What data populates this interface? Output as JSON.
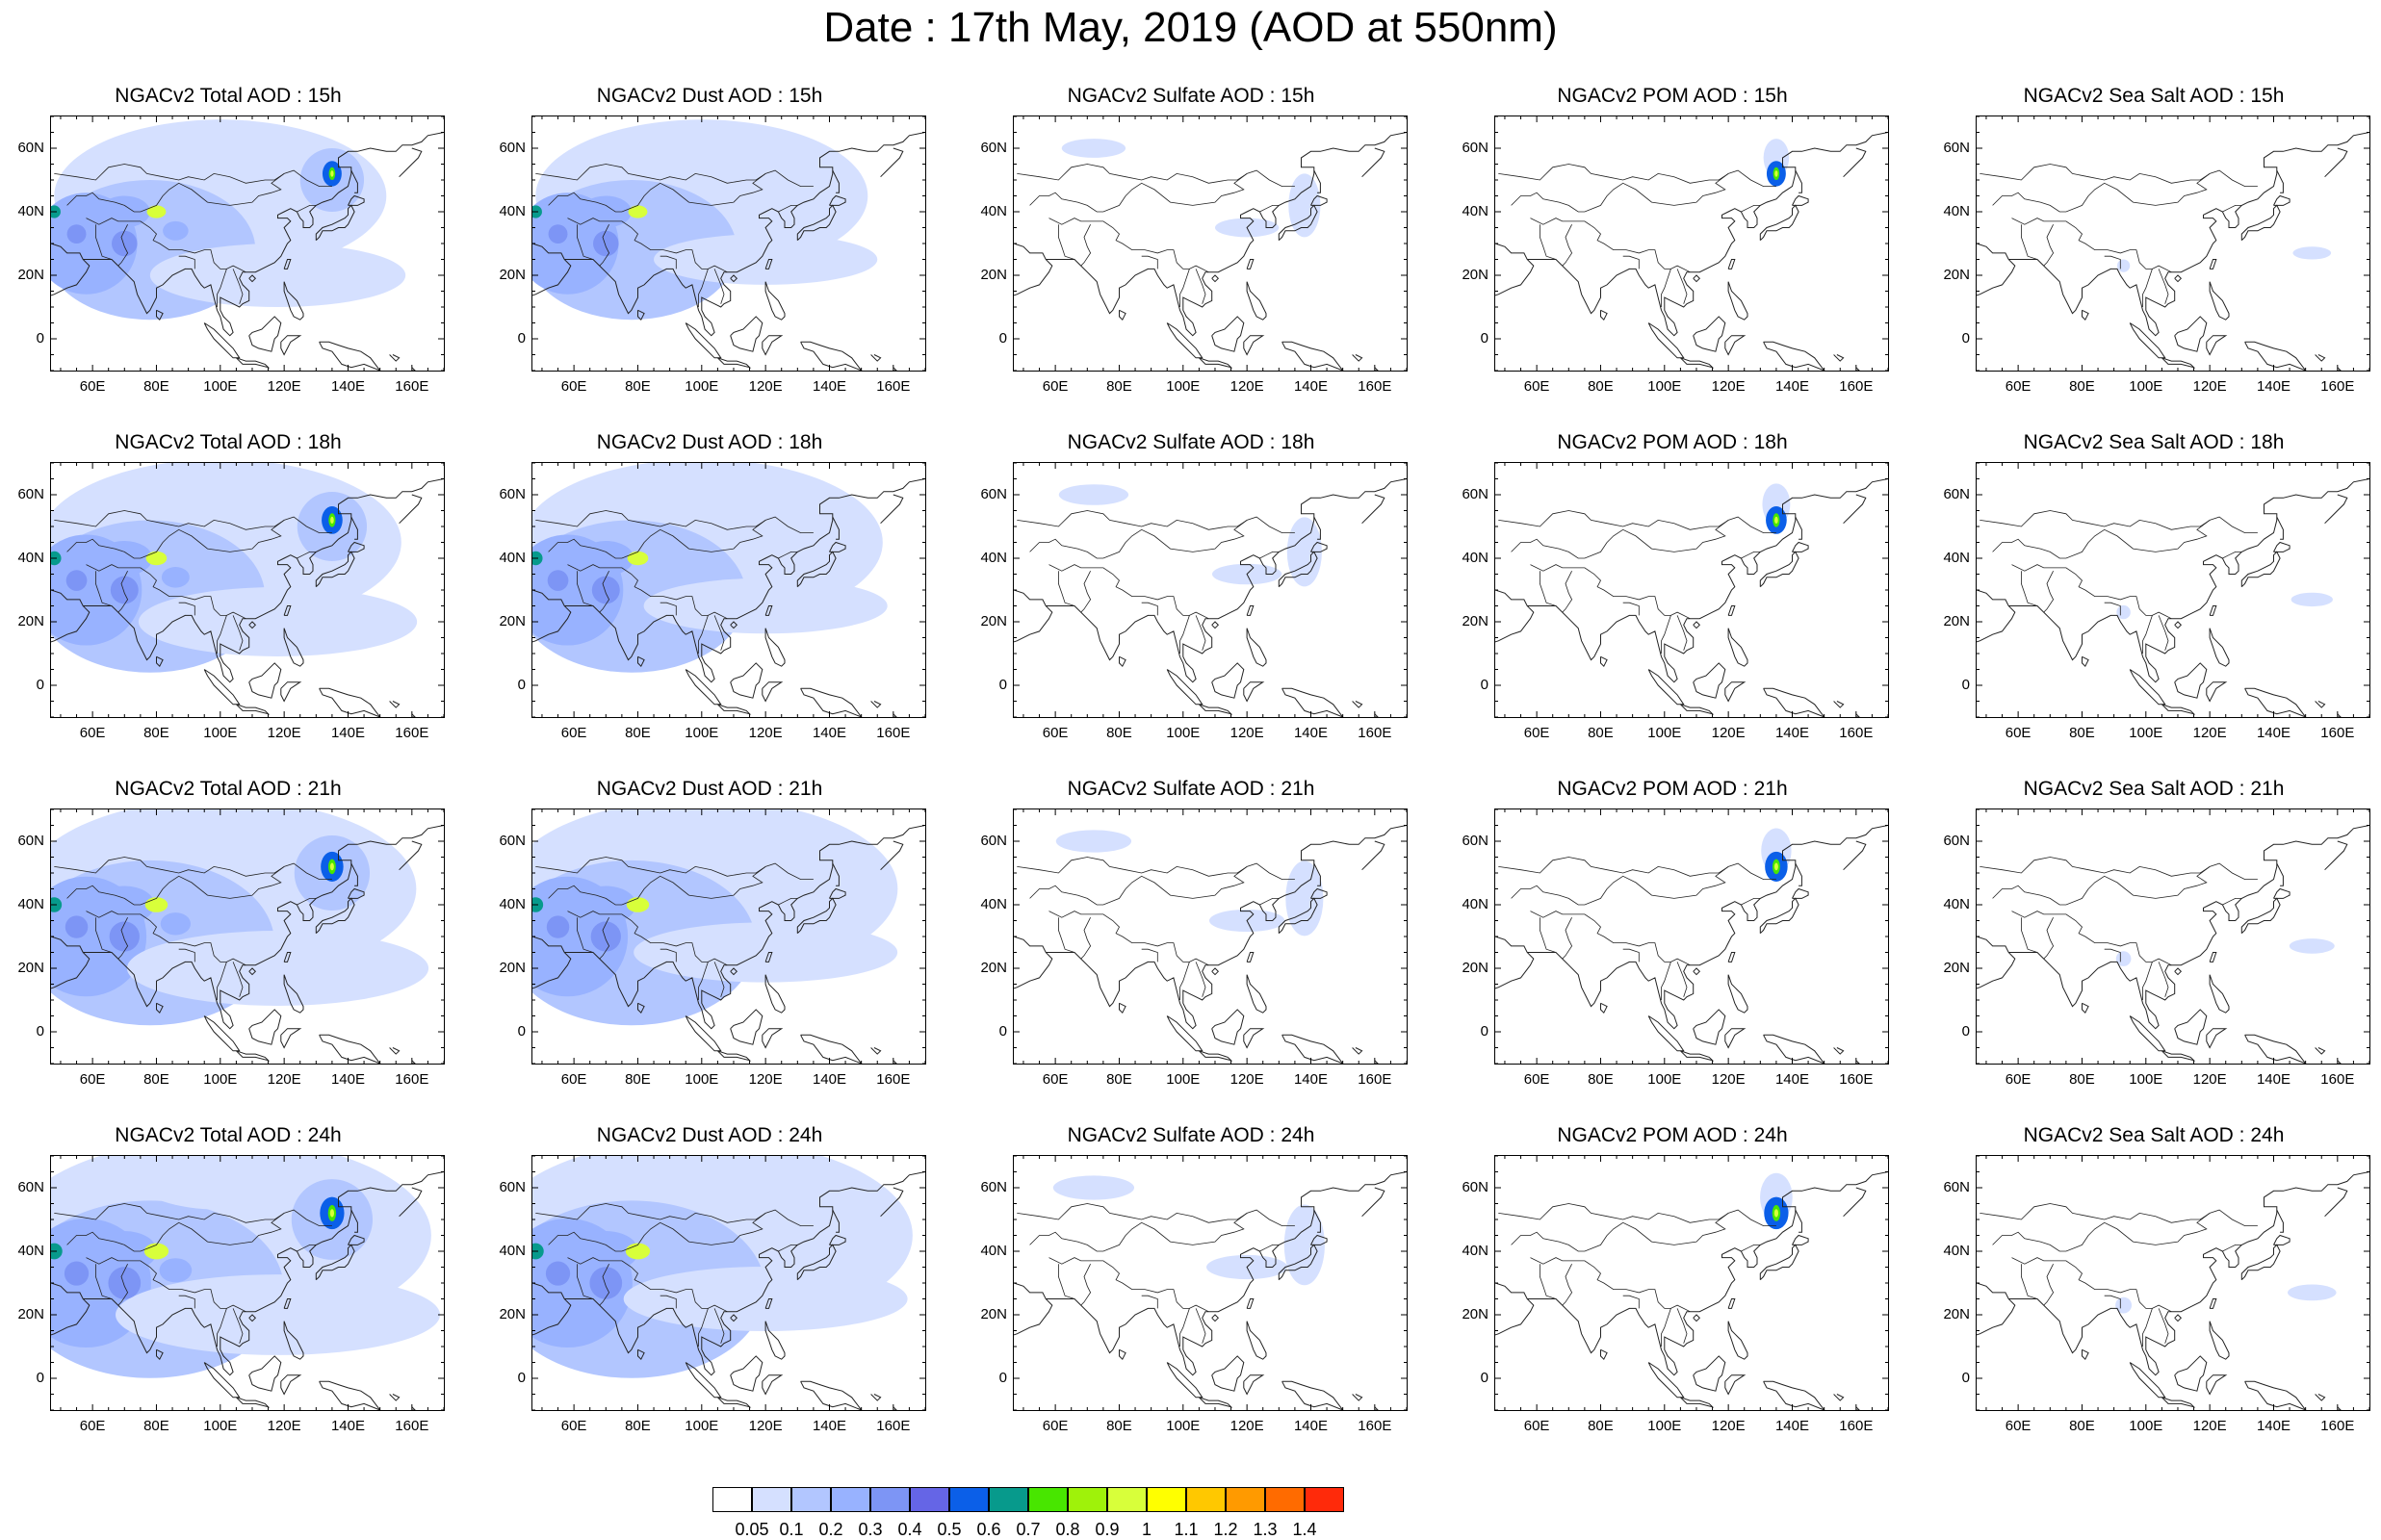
{
  "figure": {
    "title": "Date : 17th May, 2019 (AOD at 550nm)"
  },
  "axes": {
    "lat_labels": [
      "60N",
      "40N",
      "20N",
      "0"
    ],
    "lat_values": [
      60,
      40,
      20,
      0
    ],
    "lon_labels": [
      "60E",
      "80E",
      "100E",
      "120E",
      "140E",
      "160E"
    ],
    "lon_values": [
      60,
      80,
      100,
      120,
      140,
      160
    ],
    "lon_range": [
      47,
      170
    ],
    "lat_range": [
      -10,
      70
    ]
  },
  "panels": [
    {
      "title": "NGACv2 Total AOD : 15h",
      "variable": "total",
      "hour": 15
    },
    {
      "title": "NGACv2 Dust AOD : 15h",
      "variable": "dust",
      "hour": 15
    },
    {
      "title": "NGACv2 Sulfate AOD : 15h",
      "variable": "sulfate",
      "hour": 15
    },
    {
      "title": "NGACv2 POM AOD : 15h",
      "variable": "pom",
      "hour": 15
    },
    {
      "title": "NGACv2 Sea Salt AOD : 15h",
      "variable": "seasalt",
      "hour": 15
    },
    {
      "title": "NGACv2 Total AOD : 18h",
      "variable": "total",
      "hour": 18
    },
    {
      "title": "NGACv2 Dust AOD : 18h",
      "variable": "dust",
      "hour": 18
    },
    {
      "title": "NGACv2 Sulfate AOD : 18h",
      "variable": "sulfate",
      "hour": 18
    },
    {
      "title": "NGACv2 POM AOD : 18h",
      "variable": "pom",
      "hour": 18
    },
    {
      "title": "NGACv2 Sea Salt AOD : 18h",
      "variable": "seasalt",
      "hour": 18
    },
    {
      "title": "NGACv2 Total AOD : 21h",
      "variable": "total",
      "hour": 21
    },
    {
      "title": "NGACv2 Dust AOD : 21h",
      "variable": "dust",
      "hour": 21
    },
    {
      "title": "NGACv2 Sulfate AOD : 21h",
      "variable": "sulfate",
      "hour": 21
    },
    {
      "title": "NGACv2 POM AOD : 21h",
      "variable": "pom",
      "hour": 21
    },
    {
      "title": "NGACv2 Sea Salt AOD : 21h",
      "variable": "seasalt",
      "hour": 21
    },
    {
      "title": "NGACv2 Total AOD : 24h",
      "variable": "total",
      "hour": 24
    },
    {
      "title": "NGACv2 Dust AOD : 24h",
      "variable": "dust",
      "hour": 24
    },
    {
      "title": "NGACv2 Sulfate AOD : 24h",
      "variable": "sulfate",
      "hour": 24
    },
    {
      "title": "NGACv2 POM AOD : 24h",
      "variable": "pom",
      "hour": 24
    },
    {
      "title": "NGACv2 Sea Salt  AOD : 24h",
      "variable": "seasalt",
      "hour": 24
    }
  ],
  "colorbar": {
    "labels": [
      "0.05",
      "0.1",
      "0.2",
      "0.3",
      "0.4",
      "0.5",
      "0.6",
      "0.7",
      "0.8",
      "0.9",
      "1",
      "1.1",
      "1.2",
      "1.3",
      "1.4"
    ],
    "colors": [
      "#ffffff",
      "#d5e0ff",
      "#b2c6ff",
      "#98b2ff",
      "#7d95f5",
      "#6565e6",
      "#0b5fe8",
      "#079a8c",
      "#48e600",
      "#9ff20a",
      "#d8ff3a",
      "#ffff00",
      "#ffc800",
      "#ff9a00",
      "#ff6b00",
      "#ff2a0a"
    ]
  }
}
